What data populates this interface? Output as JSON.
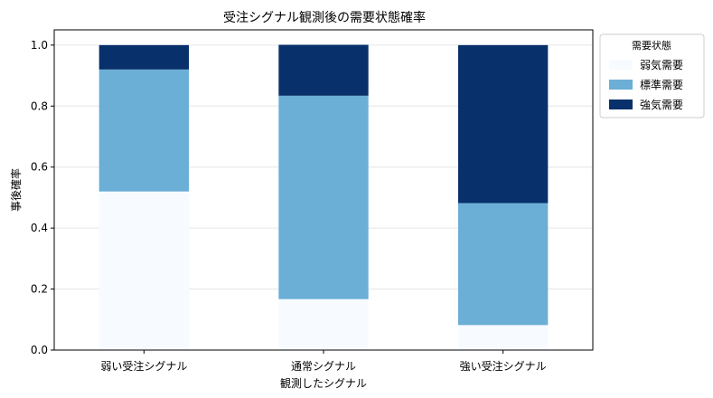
{
  "chart_data": {
    "type": "bar",
    "stacked": true,
    "title": "受注シグナル観測後の需要状態確率",
    "xlabel": "観測したシグナル",
    "ylabel": "事後確率",
    "categories": [
      "弱い受注シグナル",
      "通常シグナル",
      "強い受注シグナル"
    ],
    "series": [
      {
        "name": "弱気需要",
        "values": [
          0.52,
          0.167,
          0.082
        ],
        "color": "#f7fbff"
      },
      {
        "name": "標準需要",
        "values": [
          0.4,
          0.667,
          0.4
        ],
        "color": "#6baed6"
      },
      {
        "name": "強気需要",
        "values": [
          0.08,
          0.167,
          0.518
        ],
        "color": "#08306b"
      }
    ],
    "ylim": [
      0,
      1.05
    ],
    "yticks": [
      "0.0",
      "0.2",
      "0.4",
      "0.6",
      "0.8",
      "1.0"
    ],
    "grid": true,
    "legend": {
      "title": "需要状態",
      "placement": "outside-top-right"
    }
  }
}
